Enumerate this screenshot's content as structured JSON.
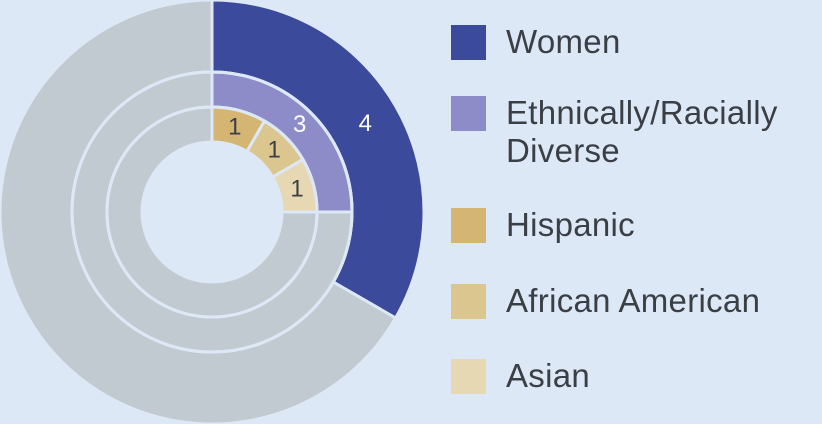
{
  "chart_data": {
    "type": "pie",
    "subtype": "nested-donut",
    "total_per_ring": 12,
    "rings": [
      {
        "segments": [
          {
            "name": "Women",
            "value": 4,
            "label": "4",
            "color": "#3b4a9a"
          },
          {
            "name": "",
            "value": 8,
            "label": "",
            "color": "#c1c9d1"
          }
        ]
      },
      {
        "segments": [
          {
            "name": "Ethnically/Racially Diverse",
            "value": 3,
            "label": "3",
            "color": "#8e8cc8"
          },
          {
            "name": "",
            "value": 9,
            "label": "",
            "color": "#c1c9d1"
          }
        ]
      },
      {
        "segments": [
          {
            "name": "Hispanic",
            "value": 1,
            "label": "1",
            "color": "#d4b574"
          },
          {
            "name": "African American",
            "value": 1,
            "label": "1",
            "color": "#dcc690"
          },
          {
            "name": "Asian",
            "value": 1,
            "label": "1",
            "color": "#e6d8b2"
          },
          {
            "name": "",
            "value": 9,
            "label": "",
            "color": "#c1c9d1"
          }
        ]
      }
    ],
    "legend": [
      {
        "name": "Women",
        "color": "#3b4a9a"
      },
      {
        "name": "Ethnically/Racially",
        "name2": "Diverse",
        "color": "#8e8cc8"
      },
      {
        "name": "Hispanic",
        "color": "#d4b574"
      },
      {
        "name": "African American",
        "color": "#dcc690"
      },
      {
        "name": "Asian",
        "color": "#e6d8b2"
      }
    ]
  },
  "colors": {
    "background": "#dde8f6",
    "divider": "#dde8f6",
    "label_dark": "#3a3f46",
    "label_light": "#ffffff"
  }
}
